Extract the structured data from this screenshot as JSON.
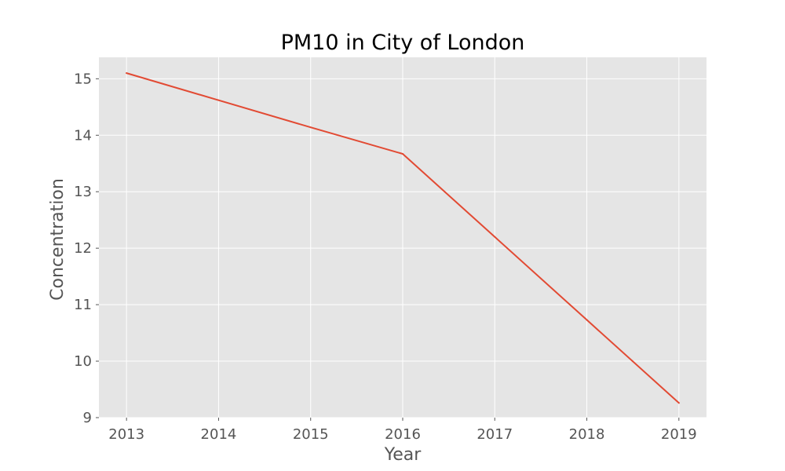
{
  "chart_data": {
    "type": "line",
    "title": "PM10 in City of London",
    "xlabel": "Year",
    "ylabel": "Concentration",
    "x": [
      2013,
      2014,
      2015,
      2016,
      2017,
      2018,
      2019
    ],
    "series": [
      {
        "values": [
          15.1,
          14.62,
          14.14,
          13.67,
          12.2,
          10.73,
          9.26
        ],
        "color": "#e24a33"
      }
    ],
    "xlim": [
      2012.7,
      2019.3
    ],
    "ylim": [
      9,
      15.38
    ],
    "xticks": [
      "2013",
      "2014",
      "2015",
      "2016",
      "2017",
      "2018",
      "2019"
    ],
    "yticks": [
      "9",
      "10",
      "11",
      "12",
      "13",
      "14",
      "15"
    ],
    "grid": true,
    "style": "ggplot",
    "background_color": "#e5e5e5",
    "grid_color": "#ffffff"
  }
}
